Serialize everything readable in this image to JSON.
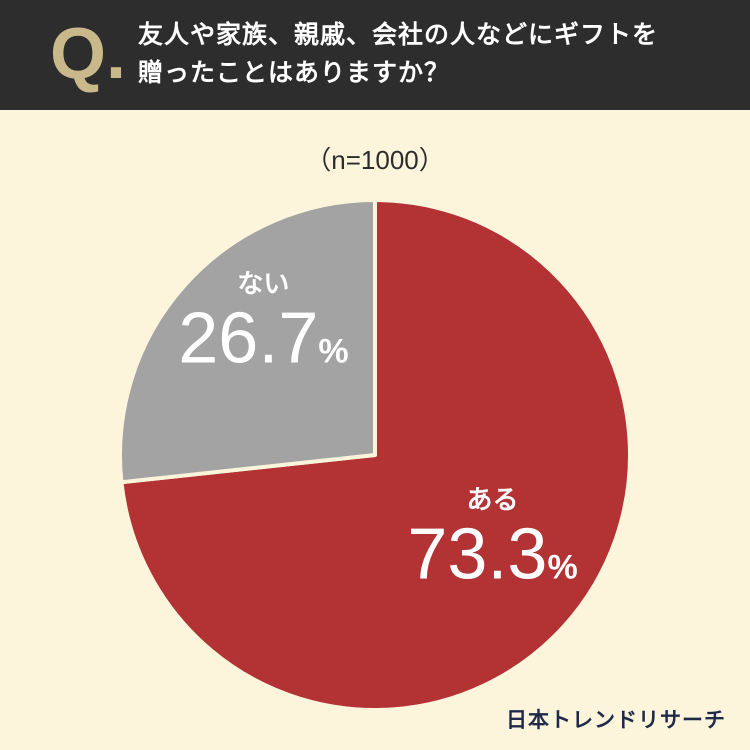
{
  "header": {
    "q_mark": "Q.",
    "question_line1": "友人や家族、親戚、会社の人などにギフトを",
    "question_line2": "贈ったことはありますか？"
  },
  "sample_size": "（n=1000）",
  "brand": "日本トレンドリサーチ",
  "colors": {
    "header_bg": "#2d2d2d",
    "page_bg": "#fdf4dc",
    "slice_yes": "#b33233",
    "slice_no": "#a3a3a3",
    "q_accent": "#c9b98a"
  },
  "chart_data": {
    "type": "pie",
    "categories": [
      "ある",
      "ない"
    ],
    "values": [
      73.3,
      26.7
    ],
    "value_labels": [
      "73.3",
      "26.7"
    ],
    "unit": "%",
    "start_angle": "12 o'clock, clockwise",
    "title": "",
    "legend": "none (labels on slices)"
  }
}
